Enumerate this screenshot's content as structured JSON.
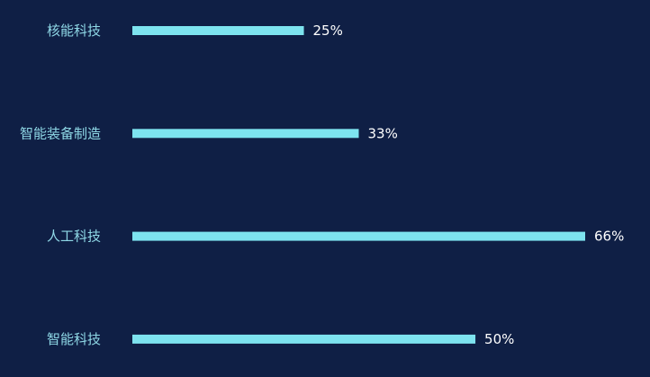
{
  "chart_data": {
    "type": "bar",
    "orientation": "horizontal",
    "categories": [
      "核能科技",
      "智能装备制造",
      "人工科技",
      "智能科技"
    ],
    "values": [
      25,
      33,
      66,
      50
    ],
    "value_labels": [
      "25%",
      "33%",
      "66%",
      "50%"
    ],
    "xlim": [
      0,
      66
    ],
    "grid": false,
    "bar_color": "#7de3ef",
    "background_color": "#0f1f45",
    "label_color": "#8fd8e6",
    "value_label_color": "#ffffff"
  }
}
